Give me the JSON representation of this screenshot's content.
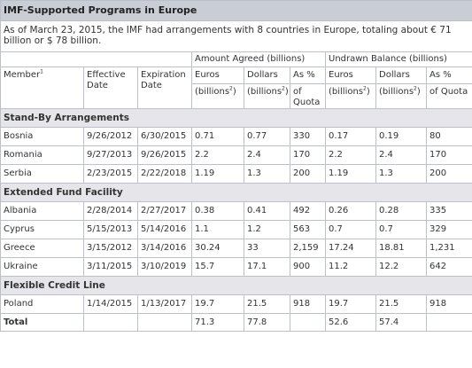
{
  "title": "IMF-Supported Programs in Europe",
  "intro": "As of March 23, 2015, the IMF had arrangements with 8 countries in Europe, totaling about € 71 billion or $ 78 billion.",
  "headers": {
    "amount_agreed": "Amount Agreed (billions)",
    "undrawn_balance": "Undrawn Balance (billions)",
    "member": "Member",
    "member_note": "1",
    "effective_date": "Effective Date",
    "expiration_date": "Expiration Date",
    "euros": "Euros",
    "dollars": "Dollars",
    "as_pct": "As %",
    "billions": "(billions",
    "billions_note": "2",
    "paren_close": ")",
    "of_quota": "of Quota"
  },
  "sections": [
    {
      "name": "Stand-By Arrangements",
      "rows": [
        {
          "member": "Bosnia",
          "effective": "9/26/2012",
          "expiration": "6/30/2015",
          "agreed_euros": "0.71",
          "agreed_dollars": "0.77",
          "agreed_pct": "330",
          "undrawn_euros": "0.17",
          "undrawn_dollars": "0.19",
          "undrawn_pct": "80"
        },
        {
          "member": "Romania",
          "effective": "9/27/2013",
          "expiration": "9/26/2015",
          "agreed_euros": "2.2",
          "agreed_dollars": "2.4",
          "agreed_pct": "170",
          "undrawn_euros": "2.2",
          "undrawn_dollars": "2.4",
          "undrawn_pct": "170"
        },
        {
          "member": "Serbia",
          "effective": "2/23/2015",
          "expiration": "2/22/2018",
          "agreed_euros": "1.19",
          "agreed_dollars": "1.3",
          "agreed_pct": "200",
          "undrawn_euros": "1.19",
          "undrawn_dollars": "1.3",
          "undrawn_pct": "200"
        }
      ]
    },
    {
      "name": "Extended Fund Facility",
      "rows": [
        {
          "member": "Albania",
          "effective": "2/28/2014",
          "expiration": "2/27/2017",
          "agreed_euros": "0.38",
          "agreed_dollars": "0.41",
          "agreed_pct": "492",
          "undrawn_euros": "0.26",
          "undrawn_dollars": "0.28",
          "undrawn_pct": "335"
        },
        {
          "member": "Cyprus",
          "effective": "5/15/2013",
          "expiration": "5/14/2016",
          "agreed_euros": "1.1",
          "agreed_dollars": "1.2",
          "agreed_pct": "563",
          "undrawn_euros": "0.7",
          "undrawn_dollars": "0.7",
          "undrawn_pct": "329"
        },
        {
          "member": "Greece",
          "effective": "3/15/2012",
          "expiration": "3/14/2016",
          "agreed_euros": "30.24",
          "agreed_dollars": "33",
          "agreed_pct": "2,159",
          "undrawn_euros": "17.24",
          "undrawn_dollars": "18.81",
          "undrawn_pct": "1,231"
        },
        {
          "member": "Ukraine",
          "effective": "3/11/2015",
          "expiration": "3/10/2019",
          "agreed_euros": "15.7",
          "agreed_dollars": "17.1",
          "agreed_pct": "900",
          "undrawn_euros": "11.2",
          "undrawn_dollars": "12.2",
          "undrawn_pct": "642"
        }
      ]
    },
    {
      "name": "Flexible Credit Line",
      "rows": [
        {
          "member": "Poland",
          "effective": "1/14/2015",
          "expiration": "1/13/2017",
          "agreed_euros": "19.7",
          "agreed_dollars": "21.5",
          "agreed_pct": "918",
          "undrawn_euros": "19.7",
          "undrawn_dollars": "21.5",
          "undrawn_pct": "918"
        }
      ]
    }
  ],
  "total": {
    "label": "Total",
    "agreed_euros": "71.3",
    "agreed_dollars": "77.8",
    "undrawn_euros": "52.6",
    "undrawn_dollars": "57.4"
  },
  "colors": {
    "title_bg": "#c9cdd6",
    "section_bg": "#e6e6ea",
    "border": "#bcc0c8",
    "text": "#333333"
  }
}
